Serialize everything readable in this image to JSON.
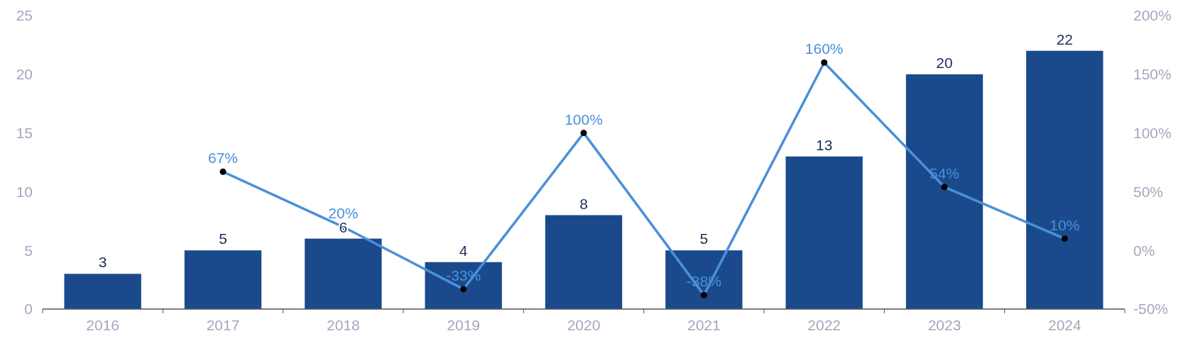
{
  "chart_data": {
    "type": "bar",
    "categories": [
      "2016",
      "2017",
      "2018",
      "2019",
      "2020",
      "2021",
      "2022",
      "2023",
      "2024"
    ],
    "series": [
      {
        "color": "#1a4a8c",
        "values": [
          3,
          5,
          6,
          4,
          8,
          5,
          13,
          20,
          22
        ],
        "value_labels": [
          "3",
          "5",
          "6",
          "4",
          "8",
          "5",
          "13",
          "20",
          "22"
        ]
      },
      {
        "type": "line",
        "axis": "y2",
        "color": "#4a90d9",
        "marker": "circle",
        "values": [
          null,
          67,
          20,
          -33,
          100,
          -38,
          160,
          54,
          10
        ],
        "value_labels": [
          null,
          "67%",
          "20%",
          "-33%",
          "100%",
          "-38%",
          "160%",
          "54%",
          "10%"
        ]
      }
    ],
    "ylim": [
      0,
      25
    ],
    "yticks": [
      0,
      5,
      10,
      15,
      20,
      25
    ],
    "y2lim": [
      -50,
      200
    ],
    "y2ticks": [
      {
        "value": -50,
        "label": "-50%"
      },
      {
        "value": 0,
        "label": "0%"
      },
      {
        "value": 50,
        "label": "50%"
      },
      {
        "value": 100,
        "label": "100%"
      },
      {
        "value": 150,
        "label": "150%"
      },
      {
        "value": 200,
        "label": "200%"
      }
    ],
    "grid": false
  }
}
